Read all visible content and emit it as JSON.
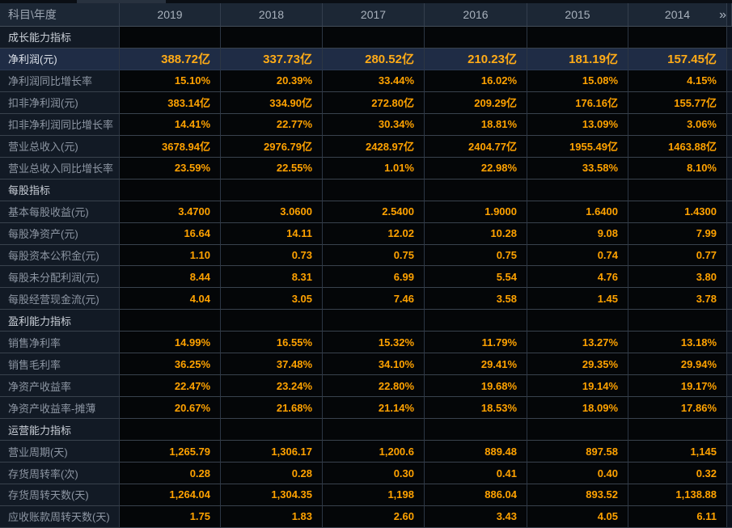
{
  "header": {
    "label_col": "科目\\年度",
    "years": [
      "2019",
      "2018",
      "2017",
      "2016",
      "2015",
      "2014"
    ],
    "more_icon": "»"
  },
  "rows": [
    {
      "type": "section",
      "label": "成长能力指标"
    },
    {
      "type": "data",
      "highlight": true,
      "label": "净利润(元)",
      "values": [
        "388.72亿",
        "337.73亿",
        "280.52亿",
        "210.23亿",
        "181.19亿",
        "157.45亿"
      ]
    },
    {
      "type": "data",
      "label": "净利润同比增长率",
      "values": [
        "15.10%",
        "20.39%",
        "33.44%",
        "16.02%",
        "15.08%",
        "4.15%"
      ]
    },
    {
      "type": "data",
      "label": "扣非净利润(元)",
      "values": [
        "383.14亿",
        "334.90亿",
        "272.80亿",
        "209.29亿",
        "176.16亿",
        "155.77亿"
      ]
    },
    {
      "type": "data",
      "label": "扣非净利润同比增长率",
      "values": [
        "14.41%",
        "22.77%",
        "30.34%",
        "18.81%",
        "13.09%",
        "3.06%"
      ]
    },
    {
      "type": "data",
      "label": "营业总收入(元)",
      "values": [
        "3678.94亿",
        "2976.79亿",
        "2428.97亿",
        "2404.77亿",
        "1955.49亿",
        "1463.88亿"
      ]
    },
    {
      "type": "data",
      "label": "营业总收入同比增长率",
      "values": [
        "23.59%",
        "22.55%",
        "1.01%",
        "22.98%",
        "33.58%",
        "8.10%"
      ]
    },
    {
      "type": "section",
      "label": "每股指标"
    },
    {
      "type": "data",
      "label": "基本每股收益(元)",
      "values": [
        "3.4700",
        "3.0600",
        "2.5400",
        "1.9000",
        "1.6400",
        "1.4300"
      ]
    },
    {
      "type": "data",
      "label": "每股净资产(元)",
      "values": [
        "16.64",
        "14.11",
        "12.02",
        "10.28",
        "9.08",
        "7.99"
      ]
    },
    {
      "type": "data",
      "label": "每股资本公积金(元)",
      "values": [
        "1.10",
        "0.73",
        "0.75",
        "0.75",
        "0.74",
        "0.77"
      ]
    },
    {
      "type": "data",
      "label": "每股未分配利润(元)",
      "values": [
        "8.44",
        "8.31",
        "6.99",
        "5.54",
        "4.76",
        "3.80"
      ]
    },
    {
      "type": "data",
      "label": "每股经营现金流(元)",
      "values": [
        "4.04",
        "3.05",
        "7.46",
        "3.58",
        "1.45",
        "3.78"
      ]
    },
    {
      "type": "section",
      "label": "盈利能力指标"
    },
    {
      "type": "data",
      "label": "销售净利率",
      "values": [
        "14.99%",
        "16.55%",
        "15.32%",
        "11.79%",
        "13.27%",
        "13.18%"
      ]
    },
    {
      "type": "data",
      "label": "销售毛利率",
      "values": [
        "36.25%",
        "37.48%",
        "34.10%",
        "29.41%",
        "29.35%",
        "29.94%"
      ]
    },
    {
      "type": "data",
      "label": "净资产收益率",
      "values": [
        "22.47%",
        "23.24%",
        "22.80%",
        "19.68%",
        "19.14%",
        "19.17%"
      ]
    },
    {
      "type": "data",
      "label": "净资产收益率-摊薄",
      "values": [
        "20.67%",
        "21.68%",
        "21.14%",
        "18.53%",
        "18.09%",
        "17.86%"
      ]
    },
    {
      "type": "section",
      "label": "运营能力指标"
    },
    {
      "type": "data",
      "label": "营业周期(天)",
      "values": [
        "1,265.79",
        "1,306.17",
        "1,200.6",
        "889.48",
        "897.58",
        "1,145"
      ]
    },
    {
      "type": "data",
      "label": "存货周转率(次)",
      "values": [
        "0.28",
        "0.28",
        "0.30",
        "0.41",
        "0.40",
        "0.32"
      ]
    },
    {
      "type": "data",
      "label": "存货周转天数(天)",
      "values": [
        "1,264.04",
        "1,304.35",
        "1,198",
        "886.04",
        "893.52",
        "1,138.88"
      ]
    },
    {
      "type": "data",
      "label": "应收账款周转天数(天)",
      "values": [
        "1.75",
        "1.83",
        "2.60",
        "3.43",
        "4.05",
        "6.11"
      ]
    }
  ],
  "colors": {
    "accent_value": "#ffa200",
    "highlight_row_bg": "#1f2c45",
    "header_bg": "#1c2735",
    "label_cell_bg": "#121a25",
    "data_cell_bg": "#040608"
  }
}
